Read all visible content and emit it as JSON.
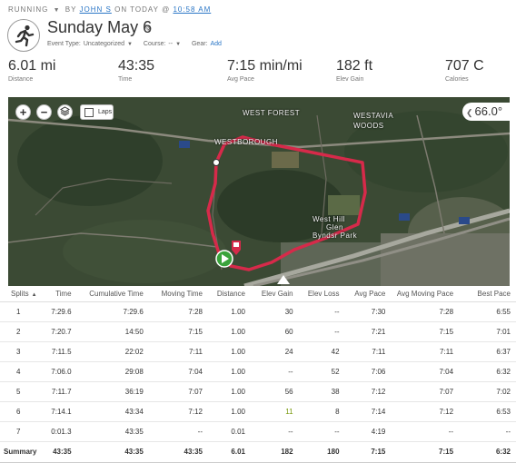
{
  "header": {
    "activity_type": "RUNNING",
    "by_text": "BY",
    "user_name": "JOHN S",
    "on_text": "ON TODAY @",
    "time": "10:58 AM",
    "title": "Sunday",
    "date": "May 6",
    "event_type_label": "Event Type:",
    "event_type_value": "Uncategorized",
    "course_label": "Course:",
    "course_value": "--",
    "gear_label": "Gear:",
    "gear_link": "Add"
  },
  "stats": [
    {
      "value": "6.01 mi",
      "label": "Distance"
    },
    {
      "value": "43:35",
      "label": "Time"
    },
    {
      "value": "7:15 min/mi",
      "label": "Avg Pace"
    },
    {
      "value": "182 ft",
      "label": "Elev Gain"
    },
    {
      "value": "707 C",
      "label": "Calories"
    }
  ],
  "map": {
    "zoom_in": "+",
    "zoom_out": "−",
    "laps_label": "Laps",
    "temperature": "66.0°",
    "labels": [
      "WEST FOREST",
      "WESTAVIA",
      "WOODS",
      "WESTBOROUGH",
      "West Hill",
      "Glen",
      "Byndsr Park"
    ],
    "route_color": "#d62a4a"
  },
  "splits": {
    "headers": [
      "Splits",
      "Time",
      "Cumulative Time",
      "Moving Time",
      "Distance",
      "Elev Gain",
      "Elev Loss",
      "Avg Pace",
      "Avg Moving Pace",
      "Best Pace"
    ],
    "rows": [
      [
        "1",
        "7:29.6",
        "7:29.6",
        "7:28",
        "1.00",
        "30",
        "--",
        "7:30",
        "7:28",
        "6:55"
      ],
      [
        "2",
        "7:20.7",
        "14:50",
        "7:15",
        "1.00",
        "60",
        "--",
        "7:21",
        "7:15",
        "7:01"
      ],
      [
        "3",
        "7:11.5",
        "22:02",
        "7:11",
        "1.00",
        "24",
        "42",
        "7:11",
        "7:11",
        "6:37"
      ],
      [
        "4",
        "7:06.0",
        "29:08",
        "7:04",
        "1.00",
        "--",
        "52",
        "7:06",
        "7:04",
        "6:32"
      ],
      [
        "5",
        "7:11.7",
        "36:19",
        "7:07",
        "1.00",
        "56",
        "38",
        "7:12",
        "7:07",
        "7:02"
      ],
      [
        "6",
        "7:14.1",
        "43:34",
        "7:12",
        "1.00",
        "11",
        "8",
        "7:14",
        "7:12",
        "6:53"
      ],
      [
        "7",
        "0:01.3",
        "43:35",
        "--",
        "0.01",
        "--",
        "--",
        "4:19",
        "--",
        "--"
      ]
    ],
    "summary": [
      "Summary",
      "43:35",
      "43:35",
      "43:35",
      "6.01",
      "182",
      "180",
      "7:15",
      "7:15",
      "6:32"
    ]
  }
}
